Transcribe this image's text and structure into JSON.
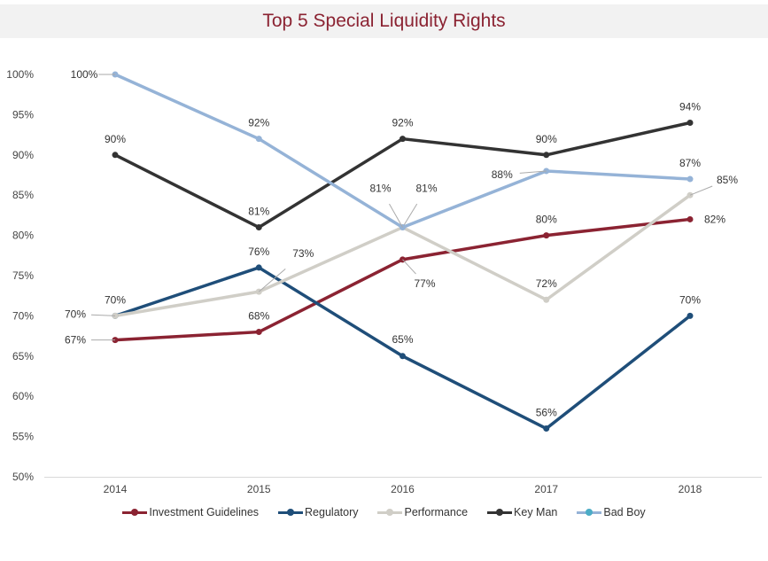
{
  "chart_data": {
    "type": "line",
    "title": "Top 5 Special Liquidity Rights",
    "categories": [
      "2014",
      "2015",
      "2016",
      "2017",
      "2018"
    ],
    "ylim": [
      50,
      100
    ],
    "yticks": [
      "50%",
      "55%",
      "60%",
      "65%",
      "70%",
      "75%",
      "80%",
      "85%",
      "90%",
      "95%",
      "100%"
    ],
    "grid": false,
    "legend_position": "bottom",
    "series": [
      {
        "name": "Investment Guidelines",
        "color": "#8b2332",
        "values": [
          67,
          68,
          77,
          80,
          82
        ]
      },
      {
        "name": "Regulatory",
        "color": "#1f4e79",
        "values": [
          70,
          76,
          65,
          56,
          70
        ]
      },
      {
        "name": "Performance",
        "color": "#d0cec7",
        "values": [
          70,
          73,
          81,
          72,
          85
        ]
      },
      {
        "name": "Key Man",
        "color": "#333333",
        "values": [
          90,
          81,
          92,
          90,
          94
        ]
      },
      {
        "name": "Bad Boy",
        "color": "#95b3d7",
        "marker_color": "#4bacc6",
        "values": [
          100,
          92,
          81,
          88,
          87
        ]
      }
    ]
  }
}
